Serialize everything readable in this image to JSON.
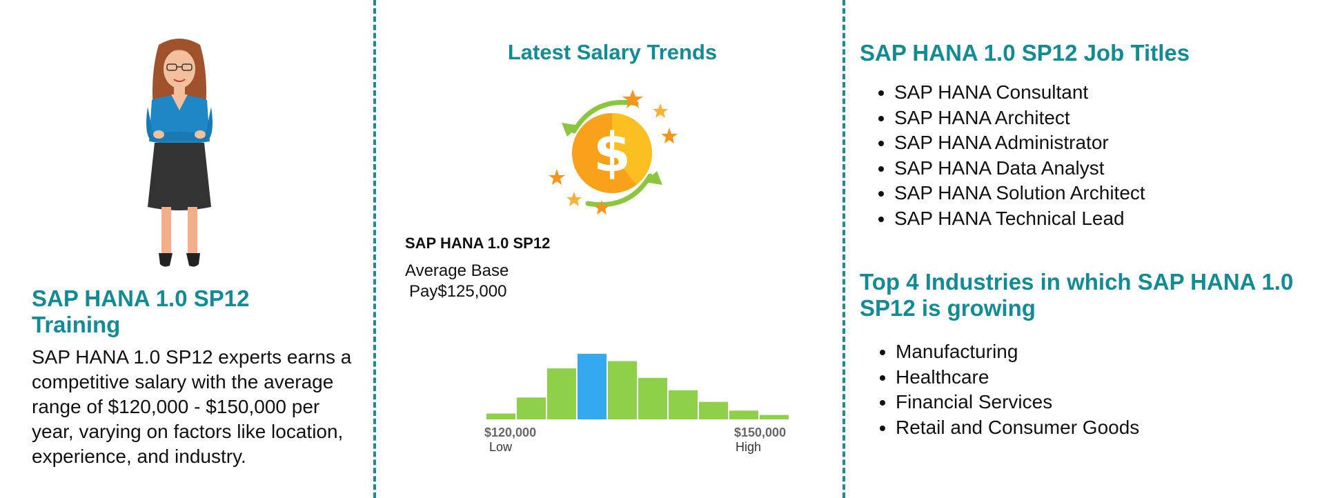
{
  "left": {
    "title": "SAP HANA 1.0 SP12 Training",
    "description": "SAP HANA 1.0 SP12 experts earns a competitive salary with the average range of $120,000 - $150,000 per year, varying on factors like location, experience, and industry."
  },
  "middle": {
    "title": "Latest Salary Trends",
    "job_name": "SAP HANA 1.0 SP12",
    "avg_label_line1": "Average Base",
    "avg_label_line2": "Pay$125,000",
    "low_value": "$120,000",
    "low_label": "Low",
    "high_value": "$150,000",
    "high_label": "High"
  },
  "right": {
    "job_titles_heading": "SAP HANA 1.0 SP12 Job Titles",
    "job_titles": [
      "SAP HANA Consultant",
      "SAP HANA Architect",
      "SAP HANA Administrator",
      "SAP HANA Data Analyst",
      "SAP HANA Solution Architect",
      "SAP HANA Technical Lead"
    ],
    "industries_heading": "Top 4 Industries in which SAP HANA 1.0 SP12 is growing",
    "industries": [
      "Manufacturing",
      "Healthcare",
      "Financial Services",
      "Retail and Consumer Goods"
    ]
  },
  "colors": {
    "accent": "#138b95",
    "bar": "#8ed04a",
    "bar_highlight": "#35a9f0",
    "divider": "#1f8a8f"
  },
  "chart_data": {
    "type": "bar",
    "values": [
      8,
      30,
      70,
      90,
      80,
      57,
      40,
      24,
      12,
      6
    ],
    "highlight_index": 3,
    "xlabel": "",
    "ylabel": ""
  }
}
